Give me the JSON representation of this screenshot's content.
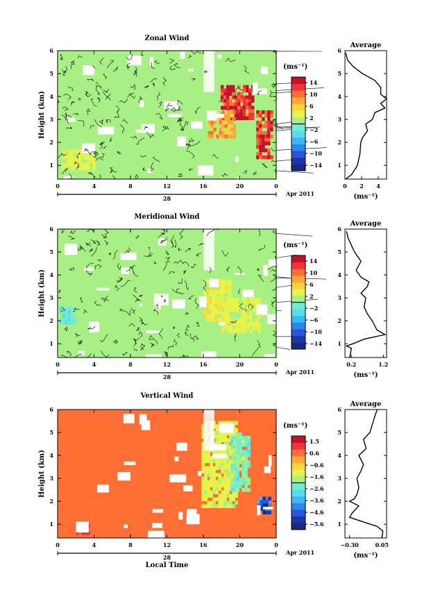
{
  "colors": {
    "background": "#ffffff",
    "colormap": [
      "#1a2a7a",
      "#2233aa",
      "#2a55d8",
      "#2e85ee",
      "#3db8f0",
      "#55ddf0",
      "#70ecd2",
      "#a8f086",
      "#e6f34a",
      "#ffd23c",
      "#ffa636",
      "#ff6e34",
      "#f0343a",
      "#c0142a"
    ],
    "bg_field": [
      "#7fefd0",
      "#7fefd0",
      "#f8c93a"
    ]
  },
  "chart_data": [
    {
      "type": "heatmap",
      "title": "Zonal Wind",
      "ylabel": "Height (km)",
      "x_ticks": [
        "0",
        "4",
        "8",
        "12",
        "16",
        "20",
        "0"
      ],
      "date_label": "28",
      "month_label": "Apr 2011",
      "xlabel": "",
      "x_range": [
        0,
        24
      ],
      "ylim": [
        0.4,
        6
      ],
      "y_ticks": [
        "1",
        "2",
        "3",
        "4",
        "5",
        "6"
      ],
      "colorbar_unit": "(ms⁻¹)",
      "colorbar_ticks": [
        "14",
        "10",
        "6",
        "2",
        "−2",
        "−6",
        "−10",
        "−14"
      ],
      "colorbar_range": [
        -16,
        16
      ],
      "contour_level": 0,
      "field_base": 1,
      "regions": [
        {
          "x": [
            17.9,
            21.4
          ],
          "y": [
            3.0,
            4.5
          ],
          "value": 13
        },
        {
          "x": [
            21.8,
            23.4
          ],
          "y": [
            1.4,
            3.4
          ],
          "value": 13
        },
        {
          "x": [
            16.5,
            19.5
          ],
          "y": [
            2.2,
            3.4
          ],
          "value": 8
        },
        {
          "x": [
            0.5,
            4.0
          ],
          "y": [
            0.8,
            1.7
          ],
          "value": 3
        }
      ],
      "profile": {
        "title": "Average",
        "xlabel": "(ms⁻¹)",
        "x_ticks": [
          "0",
          "2",
          "4"
        ],
        "xlim": [
          0,
          5
        ],
        "heights": [
          0.4,
          0.6,
          1.0,
          1.5,
          2.0,
          2.2,
          2.5,
          2.8,
          3.0,
          3.3,
          3.5,
          3.7,
          3.9,
          4.1,
          4.4,
          4.7,
          5.0,
          5.3,
          5.6,
          5.9
        ],
        "values": [
          0.1,
          0.8,
          1.5,
          1.8,
          1.9,
          2.1,
          2.7,
          2.5,
          3.3,
          3.6,
          4.8,
          4.3,
          5.0,
          4.3,
          4.3,
          3.6,
          2.1,
          1.0,
          0.3,
          0.1
        ]
      }
    },
    {
      "type": "heatmap",
      "title": "Meridional Wind",
      "ylabel": "Height (km)",
      "x_ticks": [
        "0",
        "4",
        "8",
        "12",
        "16",
        "20",
        "0"
      ],
      "date_label": "28",
      "month_label": "Apr 2011",
      "xlabel": "",
      "x_range": [
        0,
        24
      ],
      "ylim": [
        0.4,
        6
      ],
      "y_ticks": [
        "1",
        "2",
        "3",
        "4",
        "5",
        "6"
      ],
      "colorbar_unit": "(ms⁻¹)",
      "colorbar_ticks": [
        "14",
        "10",
        "6",
        "2",
        "−2",
        "−6",
        "−10",
        "−14"
      ],
      "colorbar_range": [
        -16,
        16
      ],
      "contour_level": 0,
      "field_base": 1,
      "regions": [
        {
          "x": [
            16.0,
            19.0
          ],
          "y": [
            2.0,
            3.8
          ],
          "value": 4
        },
        {
          "x": [
            18.0,
            22.0
          ],
          "y": [
            1.5,
            3.0
          ],
          "value": 3
        },
        {
          "x": [
            0.2,
            2.0
          ],
          "y": [
            1.9,
            2.6
          ],
          "value": -2
        }
      ],
      "profile": {
        "title": "Average",
        "xlabel": "(ms⁻¹)",
        "x_ticks": [
          "0.2",
          "1.2"
        ],
        "xlim": [
          0.0,
          1.3
        ],
        "heights": [
          0.4,
          0.8,
          0.9,
          1.0,
          1.2,
          1.4,
          1.6,
          2.0,
          2.3,
          2.6,
          3.0,
          3.2,
          3.5,
          3.7,
          3.9,
          4.2,
          4.6,
          5.0,
          5.3,
          5.6,
          5.9
        ],
        "values": [
          0.15,
          0.2,
          0.05,
          0.25,
          0.6,
          1.25,
          1.0,
          0.85,
          0.7,
          0.6,
          0.65,
          0.5,
          0.7,
          0.75,
          0.5,
          0.35,
          0.5,
          0.3,
          0.2,
          0.1,
          0.05
        ]
      }
    },
    {
      "type": "heatmap",
      "title": "Vertical Wind",
      "ylabel": "Height (km)",
      "x_ticks": [
        "0",
        "4",
        "8",
        "12",
        "16",
        "20",
        "0"
      ],
      "date_label": "28",
      "month_label": "Apr 2011",
      "xlabel": "Local Time",
      "x_range": [
        0,
        24
      ],
      "ylim": [
        0.4,
        6
      ],
      "y_ticks": [
        "1",
        "2",
        "3",
        "4",
        "5",
        "6"
      ],
      "colorbar_unit": "(ms⁻¹)",
      "colorbar_ticks": [
        "1.5",
        "0.6",
        "−0.6",
        "−1.6",
        "−2.6",
        "−3.6",
        "−4.6",
        "−5.6"
      ],
      "colorbar_range": [
        -6,
        2
      ],
      "contour_level": null,
      "field_base": 0.5,
      "regions": [
        {
          "x": [
            15.8,
            19.5
          ],
          "y": [
            1.8,
            5.5
          ],
          "value": -1.2
        },
        {
          "x": [
            19.0,
            21.0
          ],
          "y": [
            2.5,
            5.0
          ],
          "value": -2.0
        },
        {
          "x": [
            21.9,
            23.2
          ],
          "y": [
            1.5,
            2.2
          ],
          "value": -5.0
        },
        {
          "x": [
            2.0,
            3.5
          ],
          "y": [
            0.6,
            1.0
          ],
          "value": 1.0
        }
      ],
      "profile": {
        "title": "Average",
        "xlabel": "(ms⁻¹)",
        "x_ticks": [
          "−0.30",
          "0.05"
        ],
        "xlim": [
          -0.35,
          0.1
        ],
        "heights": [
          0.4,
          0.7,
          0.9,
          1.1,
          1.3,
          1.5,
          1.8,
          2.0,
          2.1,
          2.3,
          2.6,
          3.0,
          3.3,
          3.6,
          4.0,
          4.3,
          4.7,
          5.0,
          5.4,
          5.8,
          6.0
        ],
        "values": [
          0.05,
          0.06,
          0.0,
          -0.15,
          -0.3,
          -0.27,
          -0.2,
          -0.3,
          -0.25,
          -0.22,
          -0.2,
          -0.22,
          -0.18,
          -0.15,
          -0.2,
          -0.12,
          -0.15,
          -0.08,
          -0.05,
          -0.02,
          0.0
        ]
      }
    }
  ]
}
